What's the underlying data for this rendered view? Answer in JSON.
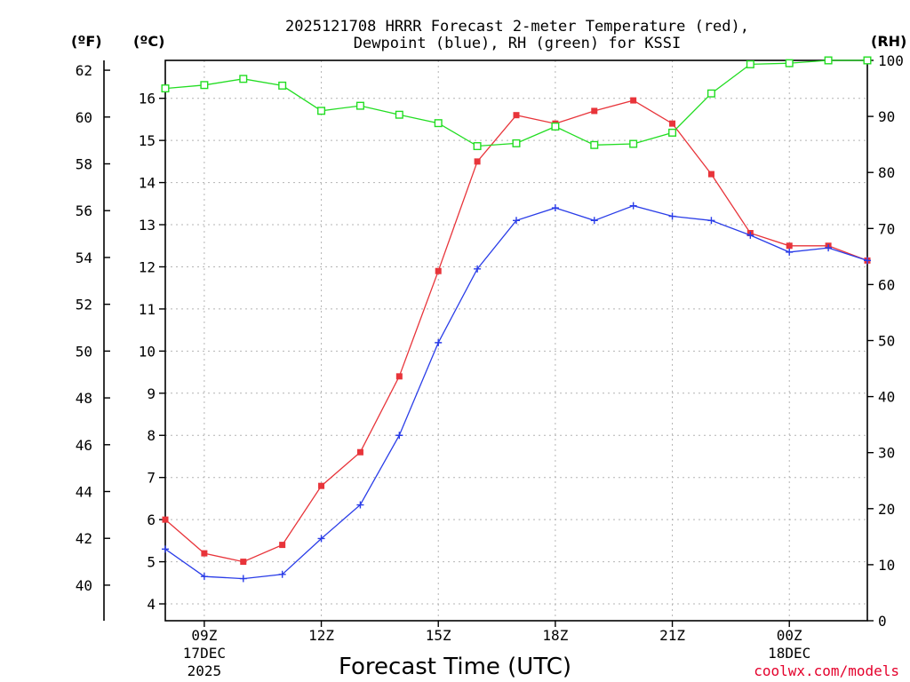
{
  "chart_data": {
    "type": "line",
    "title_line1": "2025121708 HRRR Forecast 2-meter Temperature (red),",
    "title_line2": "Dewpoint (blue), RH (green) for KSSI",
    "xlabel": "Forecast Time (UTC)",
    "credit": "coolwx.com/models",
    "unit_left_f": "(ºF)",
    "unit_left_c": "(ºC)",
    "unit_right": "(RH)",
    "x_hours": [
      8,
      9,
      10,
      11,
      12,
      13,
      14,
      15,
      16,
      17,
      18,
      19,
      20,
      21,
      22,
      23,
      24,
      25,
      26
    ],
    "xlim": [
      8,
      26
    ],
    "x_ticks": [
      {
        "hour": 9,
        "line1": "09Z",
        "line2": "17DEC",
        "line3": "2025"
      },
      {
        "hour": 12,
        "line1": "12Z",
        "line2": "",
        "line3": ""
      },
      {
        "hour": 15,
        "line1": "15Z",
        "line2": "",
        "line3": ""
      },
      {
        "hour": 18,
        "line1": "18Z",
        "line2": "",
        "line3": ""
      },
      {
        "hour": 21,
        "line1": "21Z",
        "line2": "",
        "line3": ""
      },
      {
        "hour": 24,
        "line1": "00Z",
        "line2": "18DEC",
        "line3": ""
      }
    ],
    "y_celsius_lim": [
      3.6,
      16.9
    ],
    "y_celsius_ticks": [
      4,
      5,
      6,
      7,
      8,
      9,
      10,
      11,
      12,
      13,
      14,
      15,
      16
    ],
    "y_fahrenheit_ticks": [
      40,
      42,
      44,
      46,
      48,
      50,
      52,
      54,
      56,
      58,
      60,
      62
    ],
    "y_rh_lim": [
      0,
      100
    ],
    "y_rh_ticks": [
      0,
      10,
      20,
      30,
      40,
      50,
      60,
      70,
      80,
      90,
      100
    ],
    "series": [
      {
        "name": "Temperature",
        "axis": "celsius",
        "color": "#e8343a",
        "marker": "filled-square",
        "values": [
          6.0,
          5.2,
          5.0,
          5.4,
          6.8,
          7.6,
          9.4,
          11.9,
          14.5,
          15.6,
          15.4,
          15.7,
          15.95,
          15.4,
          14.2,
          12.8,
          12.5,
          12.5,
          12.15
        ]
      },
      {
        "name": "Dewpoint",
        "axis": "celsius",
        "color": "#2a3de8",
        "marker": "plus",
        "values": [
          5.3,
          4.65,
          4.6,
          4.7,
          5.55,
          6.35,
          8.0,
          10.2,
          11.95,
          13.1,
          13.4,
          13.1,
          13.45,
          13.2,
          13.1,
          12.75,
          12.35,
          12.45,
          12.15
        ]
      },
      {
        "name": "RH",
        "axis": "rh",
        "color": "#22dd22",
        "marker": "open-square",
        "values": [
          95,
          95.6,
          96.7,
          95.5,
          91,
          91.9,
          90.3,
          88.8,
          84.7,
          85.2,
          88.2,
          84.9,
          85.1,
          87.1,
          94.1,
          99.3,
          99.5,
          100,
          100
        ]
      }
    ]
  }
}
